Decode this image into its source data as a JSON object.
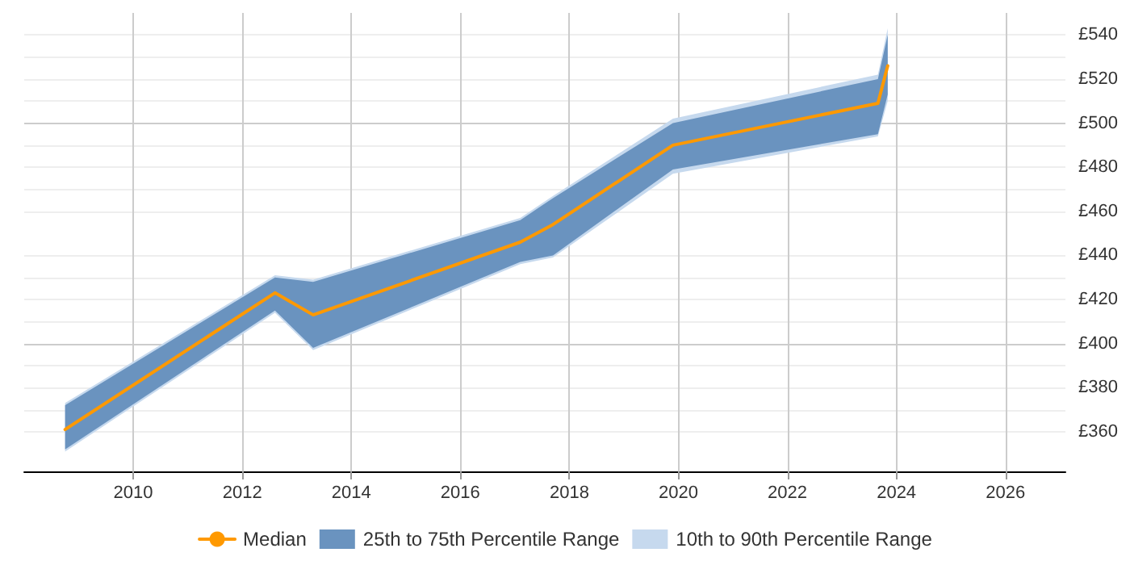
{
  "chart_data": {
    "type": "line",
    "x": [
      2008.75,
      2012.6,
      2013.3,
      2017.1,
      2017.7,
      2019.9,
      2023.66,
      2023.84
    ],
    "series": [
      {
        "name": "Median",
        "color": "#ff9900",
        "values": [
          361,
          423,
          413,
          446,
          454,
          490,
          509,
          526
        ]
      },
      {
        "name": "25th to 75th Percentile Range",
        "color": "#6a93bf",
        "values": [
          null,
          null,
          null,
          null,
          null,
          null,
          null,
          null
        ],
        "lower": [
          352,
          415,
          398,
          437,
          440,
          479,
          495,
          513
        ],
        "upper": [
          372,
          430,
          428,
          456,
          466,
          500,
          520,
          540
        ]
      },
      {
        "name": "10th to 90th Percentile Range",
        "color": "#c6d9ee",
        "values": [
          null,
          null,
          null,
          null,
          null,
          null,
          null,
          null
        ],
        "lower": [
          351,
          414,
          397,
          436,
          439,
          477,
          494,
          510
        ],
        "upper": [
          373,
          431,
          429,
          457,
          467,
          502,
          522,
          543
        ]
      }
    ],
    "xlim": [
      2008,
      2027.1
    ],
    "xticks": [
      2010,
      2012,
      2014,
      2016,
      2018,
      2020,
      2022,
      2024,
      2026
    ],
    "ylim": [
      342,
      550
    ],
    "yticks": [
      {
        "value": 360,
        "label": "£360"
      },
      {
        "value": 380,
        "label": "£380"
      },
      {
        "value": 400,
        "label": "£400"
      },
      {
        "value": 420,
        "label": "£420"
      },
      {
        "value": 440,
        "label": "£440"
      },
      {
        "value": 460,
        "label": "£460"
      },
      {
        "value": 480,
        "label": "£480"
      },
      {
        "value": 500,
        "label": "£500"
      },
      {
        "value": 520,
        "label": "£520"
      },
      {
        "value": 540,
        "label": "£540"
      }
    ],
    "grid": true,
    "legend": "bottom",
    "marker": "none",
    "line_style": "solid"
  }
}
